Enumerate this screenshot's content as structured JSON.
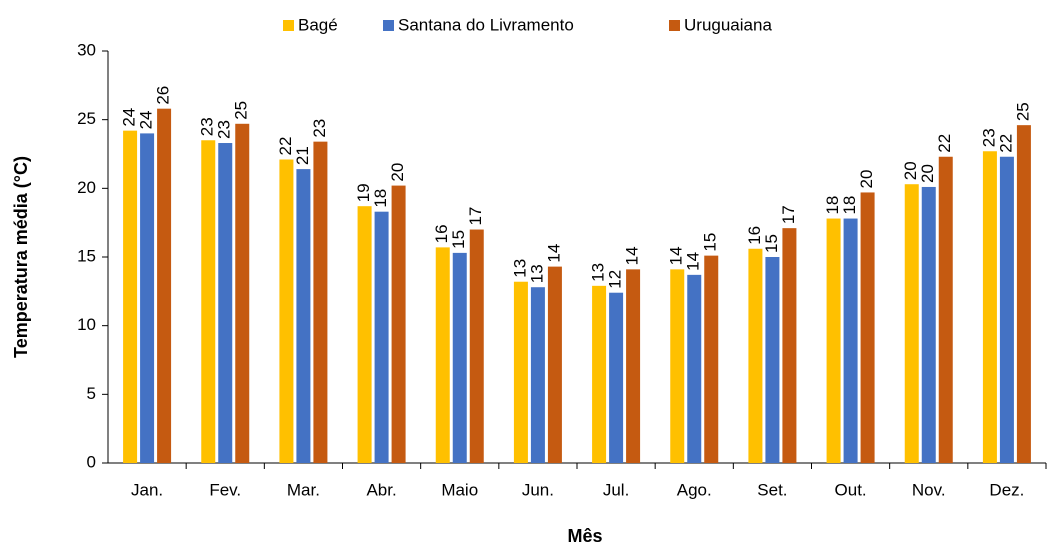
{
  "chart_data": {
    "type": "bar",
    "x_label": "Mês",
    "y_label": "Temperatura média (°C)",
    "categories": [
      "Jan.",
      "Fev.",
      "Mar.",
      "Abr.",
      "Maio",
      "Jun.",
      "Jul.",
      "Ago.",
      "Set.",
      "Out.",
      "Nov.",
      "Dez."
    ],
    "series": [
      {
        "name": "Bagé",
        "color": "#FFC000",
        "values": [
          24.2,
          23.5,
          22.1,
          18.7,
          15.7,
          13.2,
          12.9,
          14.1,
          15.6,
          17.8,
          20.3,
          22.7
        ],
        "value_labels": [
          "24",
          "23",
          "22",
          "19",
          "16",
          "13",
          "13",
          "14",
          "16",
          "18",
          "20",
          "23"
        ]
      },
      {
        "name": "Santana do Livramento",
        "color": "#4472C4",
        "values": [
          24.0,
          23.3,
          21.4,
          18.3,
          15.3,
          12.8,
          12.4,
          13.7,
          15.0,
          17.8,
          20.1,
          22.3
        ],
        "value_labels": [
          "24",
          "23",
          "21",
          "18",
          "15",
          "13",
          "12",
          "14",
          "15",
          "18",
          "20",
          "22"
        ]
      },
      {
        "name": "Uruguaiana",
        "color": "#C55A11",
        "values": [
          25.8,
          24.7,
          23.4,
          20.2,
          17.0,
          14.3,
          14.1,
          15.1,
          17.1,
          19.7,
          22.3,
          24.6
        ],
        "value_labels": [
          "26",
          "25",
          "23",
          "20",
          "17",
          "14",
          "14",
          "15",
          "17",
          "20",
          "22",
          "25"
        ]
      }
    ],
    "ylim": [
      0,
      30
    ],
    "yticks": [
      0,
      5,
      10,
      15,
      20,
      25,
      30
    ],
    "grid": false,
    "legend": "top"
  }
}
